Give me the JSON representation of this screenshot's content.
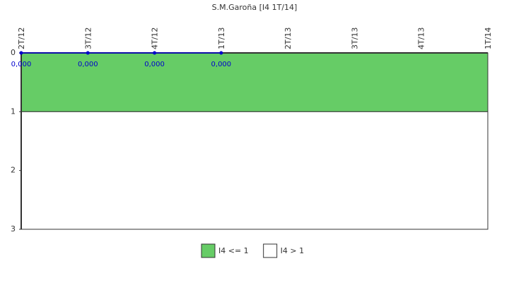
{
  "chart_data": {
    "type": "line",
    "title": "S.M.Garoña [I4 1T/14]",
    "categories": [
      "2T/12",
      "3T/12",
      "4T/12",
      "1T/13",
      "2T/13",
      "3T/13",
      "4T/13",
      "1T/14"
    ],
    "series": [
      {
        "name": "I4",
        "color": "#0000cc",
        "values": [
          0,
          0,
          0,
          0,
          null,
          null,
          null,
          null
        ],
        "value_labels": [
          "0,000",
          "0,000",
          "0,000",
          "0,000",
          null,
          null,
          null,
          null
        ]
      }
    ],
    "bands": [
      {
        "name": "I4 <= 1",
        "color": "#66cc66",
        "range": [
          0,
          1
        ]
      },
      {
        "name": "I4 > 1",
        "color": "#ffffff",
        "range": [
          1,
          3
        ]
      }
    ],
    "ylim": [
      0,
      3
    ],
    "yticks": [
      0,
      1,
      2,
      3
    ],
    "y_inverted": true
  }
}
